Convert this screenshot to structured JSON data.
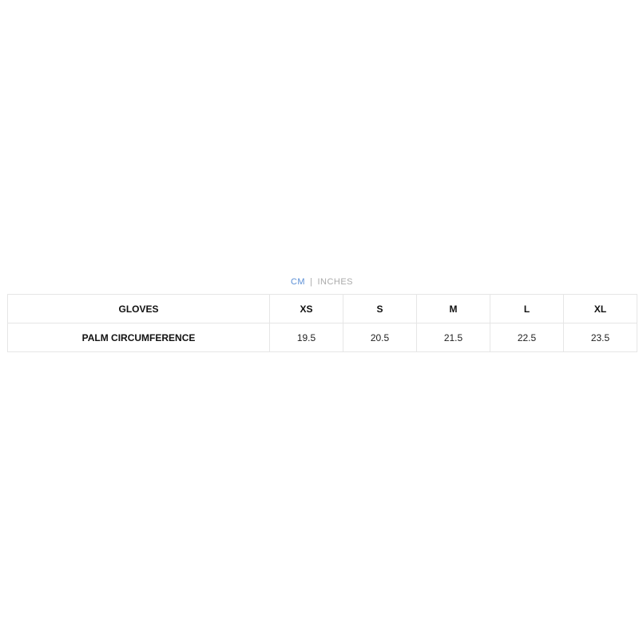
{
  "units": {
    "selected": "CM",
    "options": [
      "CM",
      "INCHES"
    ],
    "active_color": "#5b8fd6"
  },
  "table": {
    "header": [
      "GLOVES",
      "XS",
      "S",
      "M",
      "L",
      "XL"
    ],
    "rows": [
      [
        "PALM CIRCUMFERENCE",
        "19.5",
        "20.5",
        "21.5",
        "22.5",
        "23.5"
      ]
    ]
  }
}
